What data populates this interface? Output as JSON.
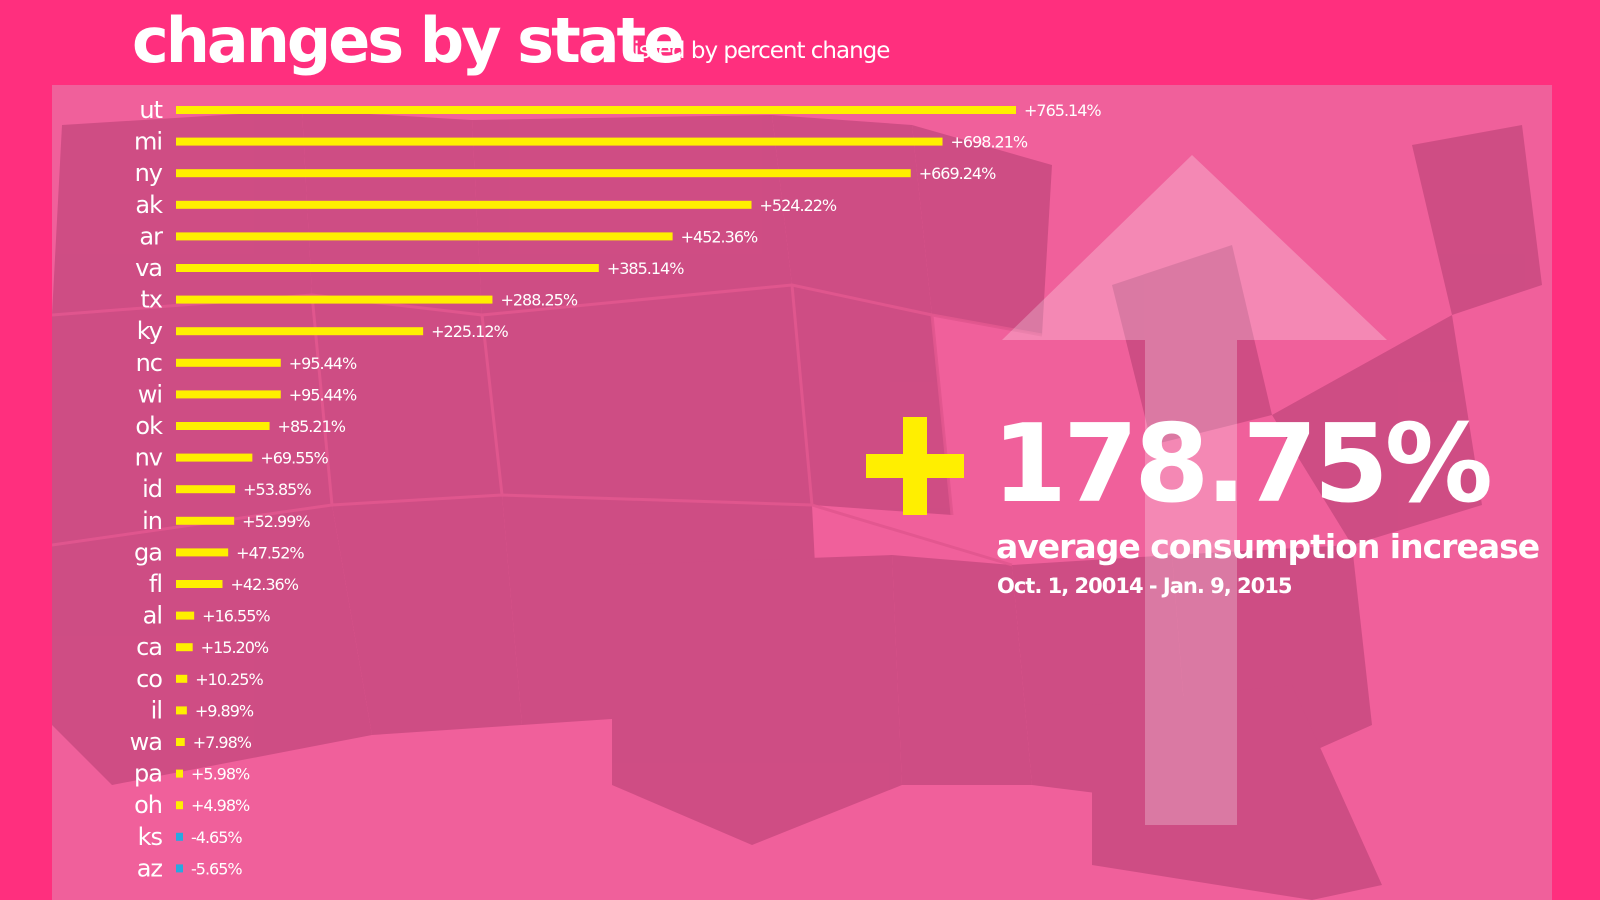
{
  "header": {
    "title": "changes by state",
    "subtitle": "listed by percent change"
  },
  "colors": {
    "page_background": "#ff2f7e",
    "map_background": "#f0609b",
    "positive_bar": "#ffef00",
    "negative_bar": "#29a8e0",
    "text": "#ffffff",
    "plus_sign": "#ffef00"
  },
  "summary": {
    "sign": "+",
    "value": "178.75%",
    "caption": "average consumption increase",
    "date_range": "Oct. 1, 20014 - Jan. 9, 2015"
  },
  "chart_data": {
    "type": "bar",
    "orientation": "horizontal",
    "title": "changes by state",
    "subtitle": "listed by percent change",
    "xlabel": "",
    "ylabel": "",
    "categories": [
      "ut",
      "mi",
      "ny",
      "ak",
      "ar",
      "va",
      "tx",
      "ky",
      "nc",
      "wi",
      "ok",
      "nv",
      "id",
      "in",
      "ga",
      "fl",
      "al",
      "ca",
      "co",
      "il",
      "wa",
      "pa",
      "oh",
      "ks",
      "az"
    ],
    "values": [
      765.14,
      698.21,
      669.24,
      524.22,
      452.36,
      385.14,
      288.25,
      225.12,
      95.44,
      95.44,
      85.21,
      69.55,
      53.85,
      52.99,
      47.52,
      42.36,
      16.55,
      15.2,
      10.25,
      9.89,
      7.98,
      5.98,
      4.98,
      -4.65,
      -5.65
    ],
    "value_labels": [
      "+765.14%",
      "+698.21%",
      "+669.24%",
      "+524.22%",
      "+452.36%",
      "+385.14%",
      "+288.25%",
      "+225.12%",
      "+95.44%",
      "+95.44%",
      "+85.21%",
      "+69.55%",
      "+53.85%",
      "+52.99%",
      "+47.52%",
      "+42.36%",
      "+16.55%",
      "+15.20%",
      "+10.25%",
      "+9.89%",
      "+7.98%",
      "+5.98%",
      "+4.98%",
      "-4.65%",
      "-5.65%"
    ],
    "grid": false,
    "legend": "none"
  }
}
